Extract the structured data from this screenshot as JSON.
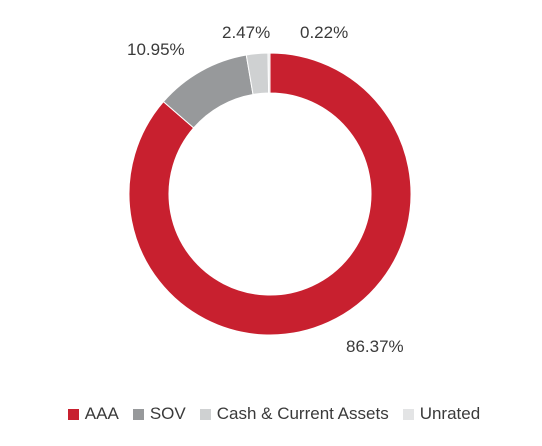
{
  "chart_data": {
    "type": "pie",
    "style": "donut",
    "title": "",
    "categories": [
      "AAA",
      "SOV",
      "Cash & Current Assets",
      "Unrated"
    ],
    "values": [
      86.37,
      10.95,
      2.47,
      0.22
    ],
    "labels": [
      "86.37%",
      "10.95%",
      "2.47%",
      "0.22%"
    ],
    "colors": [
      "#c8202f",
      "#97999b",
      "#cfd1d2",
      "#e3e4e5"
    ],
    "legend_position": "bottom"
  }
}
